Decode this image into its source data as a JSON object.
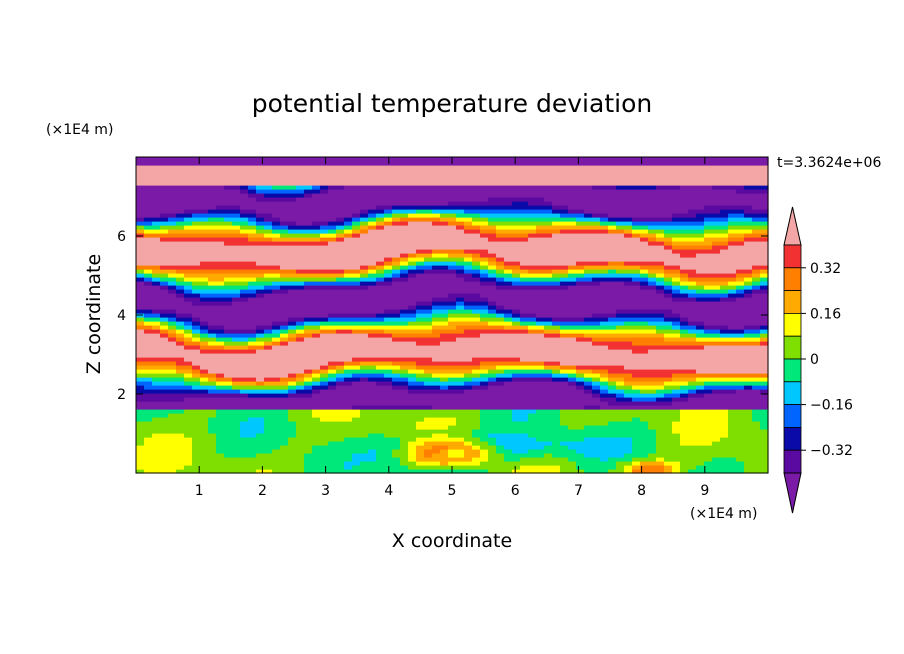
{
  "chart_data": {
    "type": "heatmap",
    "title": "potential temperature deviation",
    "xlabel": "X coordinate",
    "ylabel": "Z coordinate",
    "x_unit": "(×1E4 m)",
    "y_unit": "(×1E4 m)",
    "time_label": "t=3.3624e+06",
    "xlim": [
      0,
      10
    ],
    "ylim": [
      0,
      8
    ],
    "x_ticks": [
      "1",
      "2",
      "3",
      "4",
      "5",
      "6",
      "7",
      "8",
      "9"
    ],
    "y_ticks": [
      "2",
      "4",
      "6"
    ],
    "colorbar": {
      "labels": [
        "0.32",
        "0.16",
        "0",
        "−0.16",
        "−0.32"
      ],
      "levels": [
        0.4,
        0.32,
        0.24,
        0.16,
        0.08,
        0,
        -0.08,
        -0.16,
        -0.24,
        -0.32,
        -0.4
      ],
      "colors": [
        "#f4a6a6",
        "#f23232",
        "#ff7f00",
        "#ffaa00",
        "#ffff00",
        "#7fdf00",
        "#00e87a",
        "#00c8ff",
        "#0064ff",
        "#0a0aa8",
        "#5a0aa0",
        "#7a1aa6"
      ]
    }
  }
}
